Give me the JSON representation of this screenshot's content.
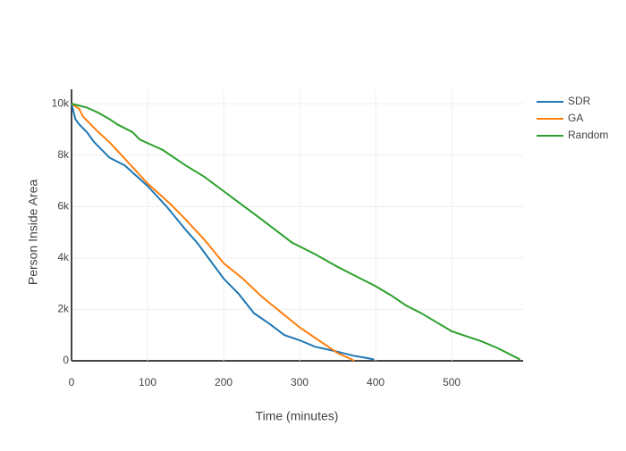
{
  "chart_data": {
    "type": "line",
    "x_label": "Time (minutes)",
    "y_label": "Person Inside Area",
    "xlim": [
      0,
      594
    ],
    "ylim": [
      0,
      10560
    ],
    "xticks": [
      0,
      100,
      200,
      300,
      400,
      500
    ],
    "yticks": [
      0,
      {
        "value": 2000,
        "label": "2k"
      },
      {
        "value": 4000,
        "label": "4k"
      },
      {
        "value": 6000,
        "label": "6k"
      },
      {
        "value": 8000,
        "label": "8k"
      },
      {
        "value": 10000,
        "label": "10k"
      }
    ],
    "grid": true,
    "legend": "top-right",
    "series": [
      {
        "name": "SDR",
        "color": "#1f77b4",
        "x": [
          0,
          5,
          10,
          20,
          30,
          40,
          50,
          70,
          100,
          125,
          150,
          165,
          175,
          200,
          220,
          240,
          260,
          280,
          300,
          320,
          350,
          370,
          390,
          398
        ],
        "values": [
          10000,
          9400,
          9200,
          8900,
          8500,
          8200,
          7900,
          7600,
          6800,
          6000,
          5100,
          4600,
          4200,
          3200,
          2600,
          1850,
          1450,
          1000,
          800,
          550,
          350,
          200,
          100,
          50
        ]
      },
      {
        "name": "GA",
        "color": "#ff7f0e",
        "x": [
          0,
          10,
          15,
          25,
          35,
          50,
          75,
          100,
          130,
          150,
          175,
          200,
          225,
          250,
          275,
          300,
          325,
          340,
          350,
          365,
          372
        ],
        "values": [
          10000,
          9800,
          9500,
          9200,
          8900,
          8500,
          7700,
          6900,
          6100,
          5500,
          4700,
          3800,
          3200,
          2500,
          1900,
          1300,
          800,
          500,
          300,
          100,
          0
        ]
      },
      {
        "name": "Random",
        "color": "#2ca02c",
        "x": [
          0,
          20,
          35,
          50,
          60,
          80,
          90,
          120,
          150,
          175,
          200,
          250,
          290,
          320,
          350,
          380,
          400,
          420,
          440,
          460,
          480,
          500,
          520,
          540,
          560,
          580,
          590
        ],
        "values": [
          10000,
          9850,
          9650,
          9400,
          9200,
          8900,
          8600,
          8200,
          7600,
          7150,
          6600,
          5500,
          4600,
          4150,
          3650,
          3200,
          2900,
          2550,
          2150,
          1850,
          1500,
          1150,
          950,
          750,
          500,
          200,
          50
        ]
      }
    ]
  }
}
